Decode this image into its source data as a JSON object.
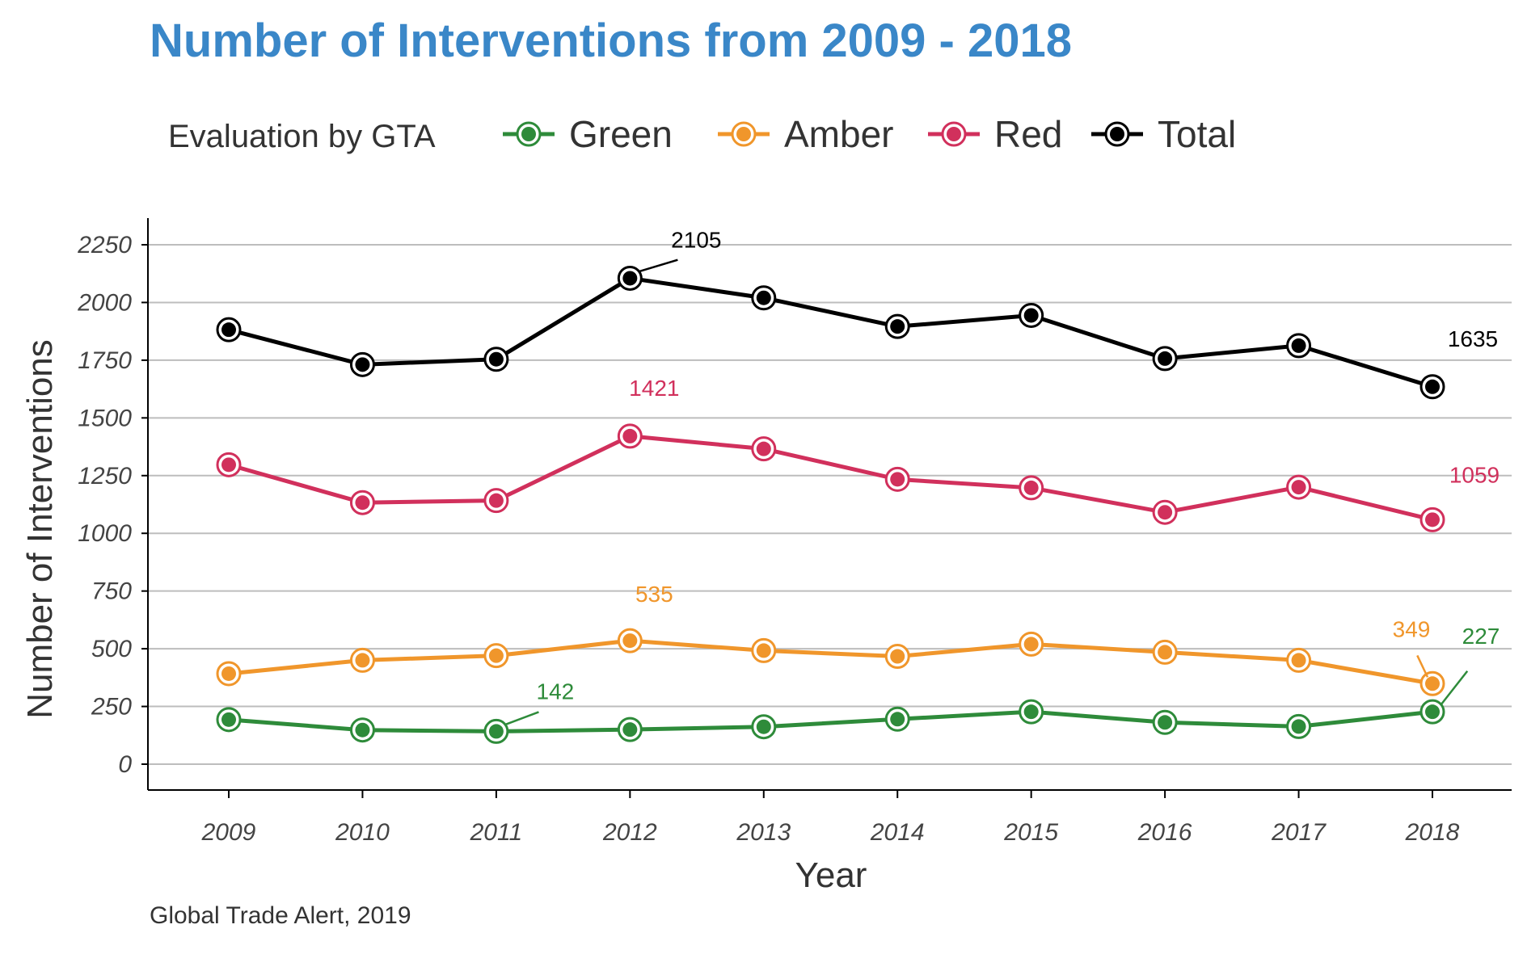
{
  "chart_data": {
    "type": "line",
    "title": "Number of Interventions from 2009 - 2018",
    "xlabel": "Year",
    "ylabel": "Number of Interventions",
    "caption": "Global Trade Alert, 2019",
    "legend_title": "Evaluation by GTA",
    "legend_position": "top",
    "grid": "horizontal",
    "x": [
      2009,
      2010,
      2011,
      2012,
      2013,
      2014,
      2015,
      2016,
      2017,
      2018
    ],
    "ylim": [
      -110,
      2375
    ],
    "yticks": [
      0,
      250,
      500,
      750,
      1000,
      1250,
      1500,
      1750,
      2000,
      2250
    ],
    "series": [
      {
        "name": "Green",
        "color": "#2e8b3a",
        "values": [
          193,
          148,
          142,
          150,
          162,
          195,
          227,
          181,
          163,
          227
        ]
      },
      {
        "name": "Amber",
        "color": "#f0962b",
        "values": [
          392,
          450,
          470,
          535,
          492,
          467,
          520,
          485,
          450,
          349
        ]
      },
      {
        "name": "Red",
        "color": "#d1305c",
        "values": [
          1297,
          1133,
          1142,
          1421,
          1366,
          1234,
          1197,
          1091,
          1200,
          1059
        ]
      },
      {
        "name": "Total",
        "color": "#000000",
        "values": [
          1882,
          1731,
          1754,
          2105,
          2020,
          1896,
          1944,
          1757,
          1813,
          1635
        ]
      }
    ],
    "annotations": [
      {
        "series": "Total",
        "x": 2012,
        "text": "2105"
      },
      {
        "series": "Total",
        "x": 2018,
        "text": "1635"
      },
      {
        "series": "Red",
        "x": 2012,
        "text": "1421"
      },
      {
        "series": "Red",
        "x": 2018,
        "text": "1059"
      },
      {
        "series": "Amber",
        "x": 2012,
        "text": "535"
      },
      {
        "series": "Amber",
        "x": 2018,
        "text": "349"
      },
      {
        "series": "Green",
        "x": 2011,
        "text": "142"
      },
      {
        "series": "Green",
        "x": 2018,
        "text": "227"
      }
    ]
  },
  "theme": {
    "title_color": "#3a87c8",
    "grid_color": "#bdbdbd",
    "axis_color": "#000000"
  }
}
